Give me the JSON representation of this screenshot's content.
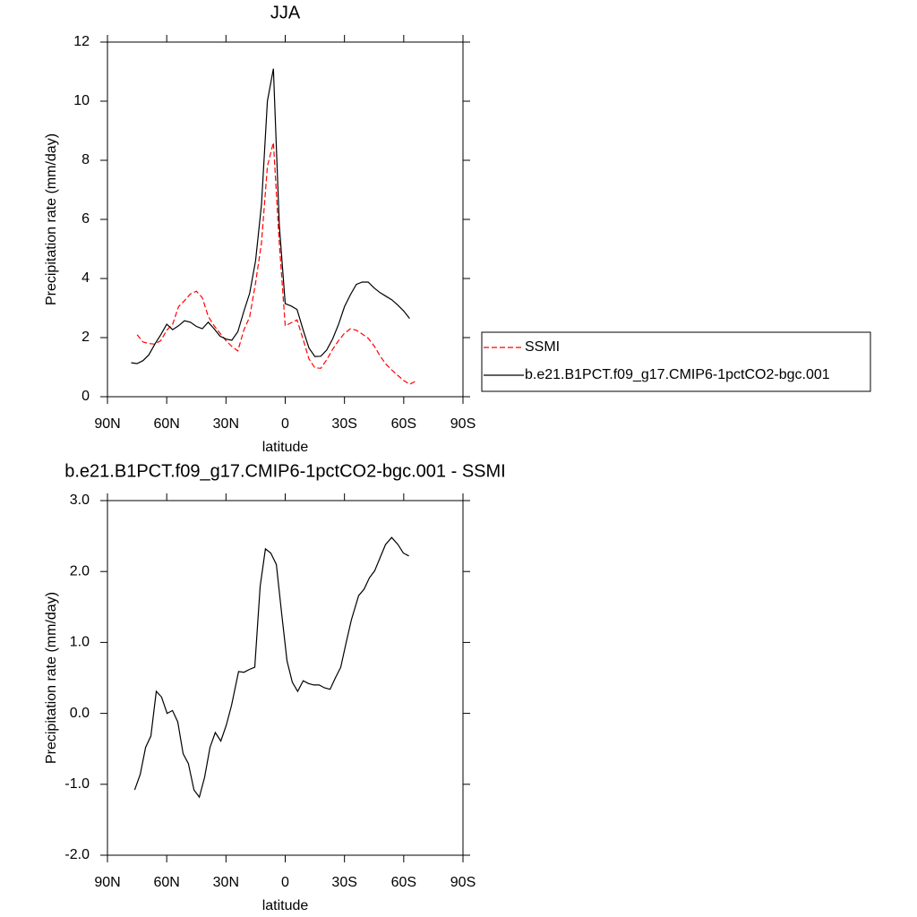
{
  "chart_data": [
    {
      "type": "line",
      "title": "JJA",
      "x_label": "latitude",
      "y_label": "Precipitation rate (mm/day)",
      "x": [
        78,
        75,
        72,
        69,
        66,
        63,
        60,
        57,
        54,
        51,
        48,
        45,
        42,
        39,
        36,
        33,
        30,
        27,
        24,
        21,
        18,
        15,
        12,
        9,
        6,
        3,
        0,
        -3,
        -6,
        -9,
        -12,
        -15,
        -18,
        -21,
        -24,
        -27,
        -30,
        -33,
        -36,
        -39,
        -42,
        -45,
        -48,
        -51,
        -54,
        -57,
        -60,
        -63,
        -66
      ],
      "series": [
        {
          "name": "SSMI",
          "color": "#ff0000",
          "dashed": true,
          "values": [
            null,
            2.1,
            1.85,
            1.8,
            1.78,
            1.9,
            2.25,
            2.45,
            3.05,
            3.25,
            3.48,
            3.57,
            3.35,
            2.72,
            2.4,
            2.15,
            1.9,
            1.7,
            1.55,
            2.25,
            2.7,
            3.85,
            5.2,
            7.8,
            8.6,
            5.2,
            2.4,
            2.5,
            2.6,
            1.95,
            1.28,
            0.98,
            0.96,
            1.25,
            1.6,
            1.9,
            2.15,
            2.3,
            2.25,
            2.12,
            1.98,
            1.72,
            1.38,
            1.1,
            0.9,
            0.72,
            0.55,
            0.42,
            0.52
          ]
        },
        {
          "name": "b.e21.B1PCT.f09_g17.CMIP6-1pctCO2-bgc.001",
          "color": "#000000",
          "dashed": false,
          "values": [
            1.15,
            1.12,
            1.22,
            1.42,
            1.78,
            2.1,
            2.45,
            2.27,
            2.4,
            2.57,
            2.52,
            2.38,
            2.3,
            2.52,
            2.3,
            2.05,
            1.95,
            1.91,
            2.2,
            2.88,
            3.5,
            4.6,
            6.5,
            10.0,
            11.1,
            5.8,
            3.15,
            3.07,
            2.95,
            2.27,
            1.65,
            1.36,
            1.37,
            1.58,
            1.95,
            2.45,
            3.05,
            3.45,
            3.8,
            3.88,
            3.88,
            3.68,
            3.52,
            3.4,
            3.28,
            3.1,
            2.9,
            2.65,
            null
          ]
        }
      ],
      "xlim": [
        90,
        -90
      ],
      "xticks": [
        {
          "value": 90,
          "label": "90N"
        },
        {
          "value": 60,
          "label": "60N"
        },
        {
          "value": 30,
          "label": "30N"
        },
        0,
        {
          "value": -30,
          "label": "30S"
        },
        {
          "value": -60,
          "label": "60S"
        },
        {
          "value": -90,
          "label": "90S"
        }
      ],
      "ylim": [
        0,
        12
      ],
      "yticks": [
        0,
        2,
        4,
        6,
        8,
        10,
        12
      ],
      "legend": "right"
    },
    {
      "type": "line",
      "title": "b.e21.B1PCT.f09_g17.CMIP6-1pctCO2-bgc.001 - SSMI",
      "x_label": "latitude",
      "y_label": "Precipitation rate (mm/day)",
      "x": [
        76.2,
        73.4,
        70.7,
        68,
        65.3,
        62.6,
        59.8,
        57.1,
        54.4,
        51.7,
        49.0,
        46.2,
        43.5,
        40.8,
        38.1,
        35.4,
        32.6,
        29.9,
        27.2,
        23.6,
        20.9,
        18.1,
        15.4,
        12.7,
        10.0,
        7.3,
        4.5,
        1.8,
        -0.9,
        -3.6,
        -6.3,
        -9.1,
        -11.8,
        -14.5,
        -17.2,
        -19.9,
        -22.7,
        -25.4,
        -28.1,
        -30.8,
        -33.5,
        -37.2,
        -39.9,
        -42.6,
        -45.3,
        -48.1,
        -50.8,
        -53.9,
        -57.1,
        -59.8,
        -62.6
      ],
      "series": [
        {
          "color": "#000000",
          "dashed": false,
          "values": [
            -1.08,
            -0.86,
            -0.48,
            -0.32,
            0.31,
            0.23,
            0,
            0.04,
            -0.12,
            -0.57,
            -0.71,
            -1.08,
            -1.18,
            -0.9,
            -0.48,
            -0.27,
            -0.39,
            -0.17,
            0.11,
            0.59,
            0.58,
            0.62,
            0.65,
            1.79,
            2.32,
            2.26,
            2.1,
            1.41,
            0.74,
            0.44,
            0.31,
            0.46,
            0.42,
            0.4,
            0.4,
            0.36,
            0.34,
            0.5,
            0.65,
            0.99,
            1.32,
            1.66,
            1.75,
            1.91,
            2.01,
            2.2,
            2.38,
            2.48,
            2.38,
            2.26,
            2.22
          ]
        }
      ],
      "xlim": [
        90,
        -90
      ],
      "xticks": [
        {
          "value": 90,
          "label": "90N"
        },
        {
          "value": 60,
          "label": "60N"
        },
        {
          "value": 30,
          "label": "30N"
        },
        0,
        {
          "value": -30,
          "label": "30S"
        },
        {
          "value": -60,
          "label": "60S"
        },
        {
          "value": -90,
          "label": "90S"
        }
      ],
      "ylim": [
        -2,
        3
      ],
      "yticks": [
        {
          "value": -2,
          "label": "-2.0"
        },
        {
          "value": -1,
          "label": "-1.0"
        },
        {
          "value": 0,
          "label": "0.0"
        },
        {
          "value": 1,
          "label": "1.0"
        },
        {
          "value": 2,
          "label": "2.0"
        },
        {
          "value": 3,
          "label": "3.0"
        }
      ]
    }
  ]
}
